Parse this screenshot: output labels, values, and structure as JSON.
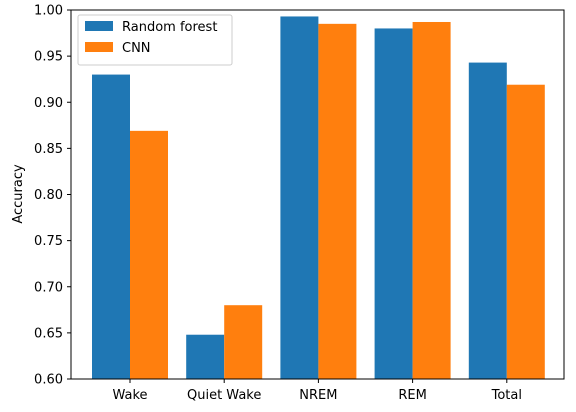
{
  "chart_data": {
    "type": "bar",
    "title": "",
    "xlabel": "",
    "ylabel": "Accuracy",
    "categories": [
      "Wake",
      "Quiet Wake",
      "NREM",
      "REM",
      "Total"
    ],
    "series": [
      {
        "name": "Random forest",
        "color": "#1f77b4",
        "values": [
          0.93,
          0.648,
          0.993,
          0.98,
          0.943
        ]
      },
      {
        "name": "CNN",
        "color": "#ff7f0e",
        "values": [
          0.869,
          0.68,
          0.985,
          0.987,
          0.919
        ]
      }
    ],
    "ylim": [
      0.6,
      1.0
    ],
    "yticks": [
      "0.60",
      "0.65",
      "0.70",
      "0.75",
      "0.80",
      "0.85",
      "0.90",
      "0.95",
      "1.00"
    ],
    "grid": false,
    "legend_position": "top-left"
  }
}
